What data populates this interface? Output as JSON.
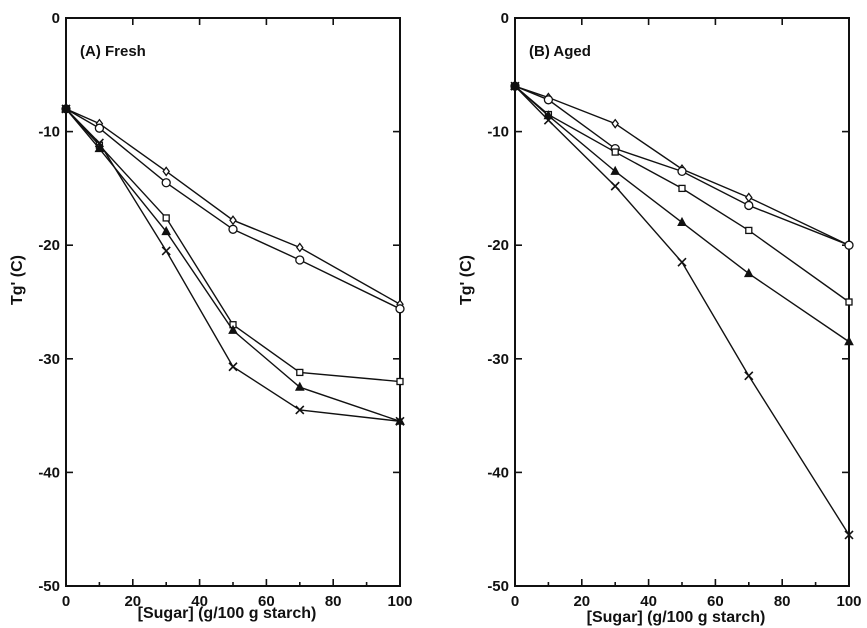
{
  "chart_data": [
    {
      "type": "line",
      "title": "(A) Fresh",
      "xlabel": "[Sugar] (g/100 g starch)",
      "ylabel": "Tg' (C)",
      "xlim": [
        0,
        100
      ],
      "ylim": [
        -50,
        0
      ],
      "xticks": [
        "0",
        "20",
        "40",
        "60",
        "80",
        "100"
      ],
      "yticks": [
        "0",
        "-10",
        "-20",
        "-30",
        "-40",
        "-50"
      ],
      "grid": false,
      "x": [
        0,
        10,
        30,
        50,
        70,
        100
      ],
      "series": [
        {
          "marker": "diamond",
          "values": [
            -8,
            -9.3,
            -13.5,
            -17.8,
            -20.2,
            -25.2
          ]
        },
        {
          "marker": "circle",
          "values": [
            -8,
            -9.7,
            -14.5,
            -18.6,
            -21.3,
            -25.6
          ]
        },
        {
          "marker": "square",
          "values": [
            -8,
            -11.2,
            -17.6,
            -27,
            -31.2,
            -32
          ]
        },
        {
          "marker": "triangle",
          "values": [
            -8,
            -11.5,
            -18.8,
            -27.5,
            -32.5,
            -35.5
          ]
        },
        {
          "marker": "cross",
          "values": [
            -8,
            -11,
            -20.5,
            -30.7,
            -34.5,
            -35.5
          ]
        }
      ]
    },
    {
      "type": "line",
      "title": "(B) Aged",
      "xlabel": "[Sugar] (g/100 g starch)",
      "ylabel": "Tg' (C)",
      "xlim": [
        0,
        100
      ],
      "ylim": [
        -50,
        0
      ],
      "xticks": [
        "0",
        "20",
        "40",
        "60",
        "80",
        "100"
      ],
      "yticks": [
        "0",
        "-10",
        "-20",
        "-30",
        "-40",
        "-50"
      ],
      "grid": false,
      "x": [
        0,
        10,
        30,
        50,
        70,
        100
      ],
      "series": [
        {
          "marker": "diamond",
          "values": [
            -6,
            -7,
            -9.3,
            -13.3,
            -15.8,
            -20
          ]
        },
        {
          "marker": "circle",
          "values": [
            -6,
            -7.2,
            -11.5,
            -13.5,
            -16.5,
            -20
          ]
        },
        {
          "marker": "square",
          "values": [
            -6,
            -8.5,
            -11.8,
            -15,
            -18.7,
            -25
          ]
        },
        {
          "marker": "triangle",
          "values": [
            -6,
            -8.6,
            -13.5,
            -18,
            -22.5,
            -28.5
          ]
        },
        {
          "marker": "cross",
          "values": [
            -6,
            -9,
            -14.8,
            -21.5,
            -31.5,
            -45.5
          ]
        }
      ]
    }
  ]
}
